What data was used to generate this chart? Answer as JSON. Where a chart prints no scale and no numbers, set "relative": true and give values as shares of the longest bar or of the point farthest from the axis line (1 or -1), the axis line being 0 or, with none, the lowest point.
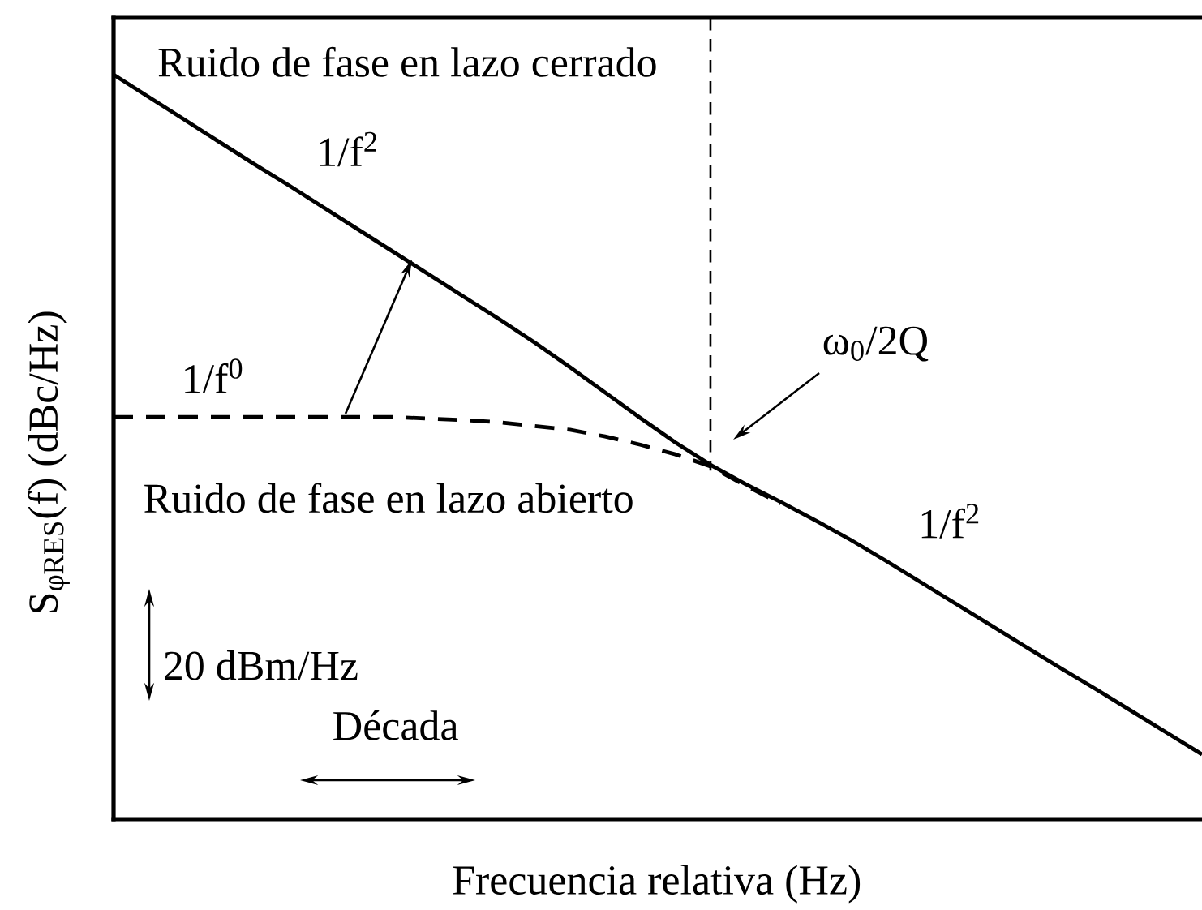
{
  "chart_data": {
    "type": "line",
    "relative": true,
    "xlabel": "Frecuencia relativa (Hz)",
    "ylabel": "S$_{φRES}$(f) (dBc/Hz)",
    "categories": [
      null,
      null,
      null,
      null,
      null,
      null,
      null,
      null,
      null,
      null,
      null,
      null,
      null,
      null,
      null,
      null,
      null,
      null,
      null,
      null,
      null,
      null,
      null,
      null,
      null,
      null,
      null,
      null,
      null,
      null,
      null,
      null
    ],
    "series": [
      {
        "name": "Ruido de fase en lazo cerrado",
        "color": "#000000",
        "line_style": "solid",
        "values": [
          1,
          0.97,
          0.94,
          0.91,
          0.88,
          0.851,
          0.821,
          0.791,
          0.761,
          0.731,
          0.701,
          0.671,
          0.64,
          0.607,
          0.573,
          0.539,
          0.506,
          0.476,
          0.45,
          0.426,
          0.401,
          0.375,
          0.347,
          0.318,
          0.289,
          0.26,
          0.231,
          0.202,
          0.174,
          0.145,
          0.116,
          0.087
        ]
      },
      {
        "name": "Ruido de fase en lazo abierto",
        "color": "#000000",
        "line_style": "dashed",
        "values": [
          0.54,
          0.54,
          0.54,
          0.54,
          0.54,
          0.54,
          0.54,
          0.54,
          0.54,
          0.538,
          0.536,
          0.533,
          0.528,
          0.523,
          0.514,
          0.503,
          0.49,
          0.474,
          0.448,
          0.424,
          null,
          null,
          null,
          null,
          null,
          null,
          null,
          null,
          null,
          null,
          null,
          null
        ]
      }
    ],
    "annotations": [
      "1/f$^{2}$",
      "1/f$^{0}$",
      "ω$_{0}$/2Q",
      "1/f$^{2}$",
      "20 dBm/Hz",
      "Década"
    ]
  }
}
